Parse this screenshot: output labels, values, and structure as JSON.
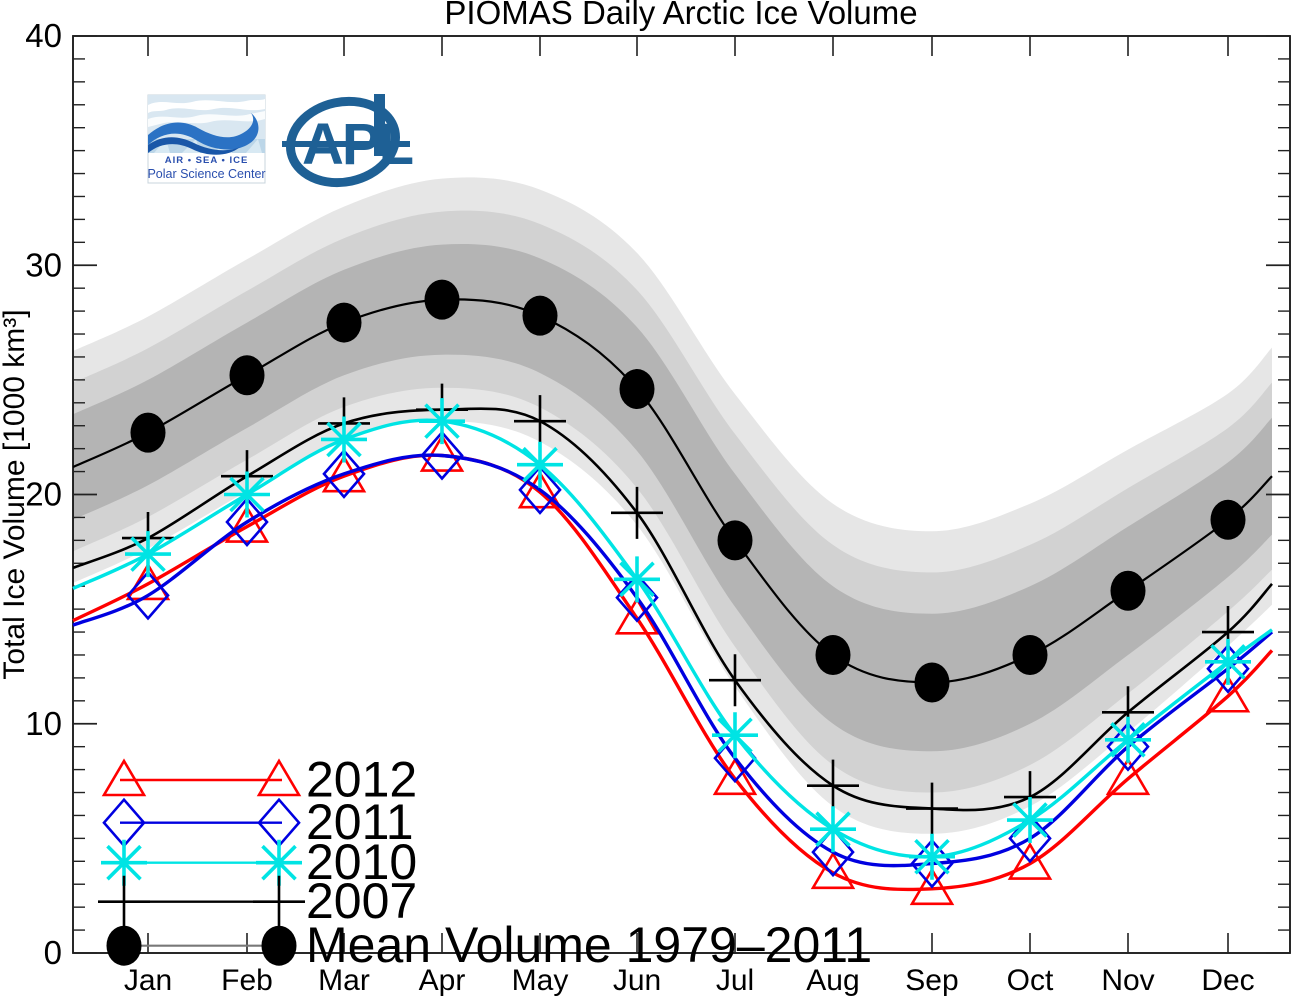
{
  "title": "PIOMAS Daily Arctic Ice Volume",
  "logos": {
    "polar_science_center": {
      "tagline": "AIR  •  SEA  •  ICE",
      "name": "Polar Science Center",
      "wave_blue": "#2b72c4",
      "wave_dark_blue": "#1a57a8",
      "panel_blue": "#d9e7f1",
      "text_blue": "#2a4fae"
    },
    "apl": {
      "letters": "APL",
      "color": "#1e6095"
    }
  },
  "chart_data": {
    "type": "line",
    "title": "PIOMAS Daily Arctic Ice Volume",
    "xlabel": "",
    "ylabel": "Total Ice Volume [1000 km³]",
    "ylim": [
      0,
      40
    ],
    "y_major_ticks": [
      0,
      10,
      20,
      30,
      40
    ],
    "y_minor_step": 1,
    "grid": "off",
    "legend_position": "bottom-left",
    "categories": [
      "Jan",
      "Feb",
      "Mar",
      "Apr",
      "May",
      "Jun",
      "Jul",
      "Aug",
      "Sep",
      "Oct",
      "Nov",
      "Dec"
    ],
    "series": [
      {
        "name": "2012",
        "color": "#ff0000",
        "marker": "triangle",
        "line_width": 3.4,
        "values": [
          16.1,
          18.6,
          20.8,
          21.7,
          20.1,
          14.6,
          7.6,
          3.5,
          2.8,
          3.9,
          7.6,
          11.2
        ],
        "start_value": 14.5,
        "end_value": 13.2
      },
      {
        "name": "2011",
        "color": "#0000e0",
        "marker": "diamond",
        "line_width": 3.4,
        "values": [
          15.6,
          18.8,
          20.9,
          21.7,
          20.2,
          15.5,
          8.5,
          4.4,
          3.9,
          5.0,
          9.0,
          12.4
        ],
        "start_value": 14.3,
        "end_value": 14.0
      },
      {
        "name": "2010",
        "color": "#00e4e4",
        "marker": "asterisk",
        "line_width": 3.4,
        "values": [
          17.4,
          20.0,
          22.4,
          23.2,
          21.3,
          16.3,
          9.5,
          5.4,
          4.2,
          5.8,
          9.3,
          12.7
        ],
        "start_value": 15.9,
        "end_value": 14.1
      },
      {
        "name": "2007",
        "color": "#000000",
        "marker": "plus",
        "line_width": 2.6,
        "values": [
          18.1,
          20.8,
          23.1,
          23.7,
          23.2,
          19.2,
          11.9,
          7.3,
          6.3,
          6.8,
          10.5,
          14.0
        ],
        "start_value": 16.8,
        "end_value": 16.1
      },
      {
        "name": "Mean Volume 1979–2011",
        "color": "#000000",
        "marker": "circle",
        "line_width": 2.2,
        "values": [
          22.7,
          25.2,
          27.5,
          28.5,
          27.8,
          24.6,
          18.0,
          13.0,
          11.8,
          13.0,
          15.8,
          18.9
        ],
        "start_value": 21.2,
        "end_value": 20.8
      }
    ],
    "std_bands": {
      "about_series": "Mean Volume 1979–2011",
      "sigma_by_month": [
        2.3,
        2.3,
        2.3,
        2.4,
        2.5,
        2.7,
        2.9,
        3.0,
        3.0,
        3.0,
        2.8,
        2.5
      ],
      "sigma_start": 2.3,
      "sigma_end": 2.55,
      "levels": [
        {
          "k": 2.2,
          "color": "#e6e6e6"
        },
        {
          "k": 1.6,
          "color": "#d2d2d2"
        },
        {
          "k": 1.0,
          "color": "#b4b4b4"
        }
      ]
    },
    "legend": [
      "2012",
      "2011",
      "2010",
      "2007",
      "Mean Volume 1979–2011"
    ]
  }
}
